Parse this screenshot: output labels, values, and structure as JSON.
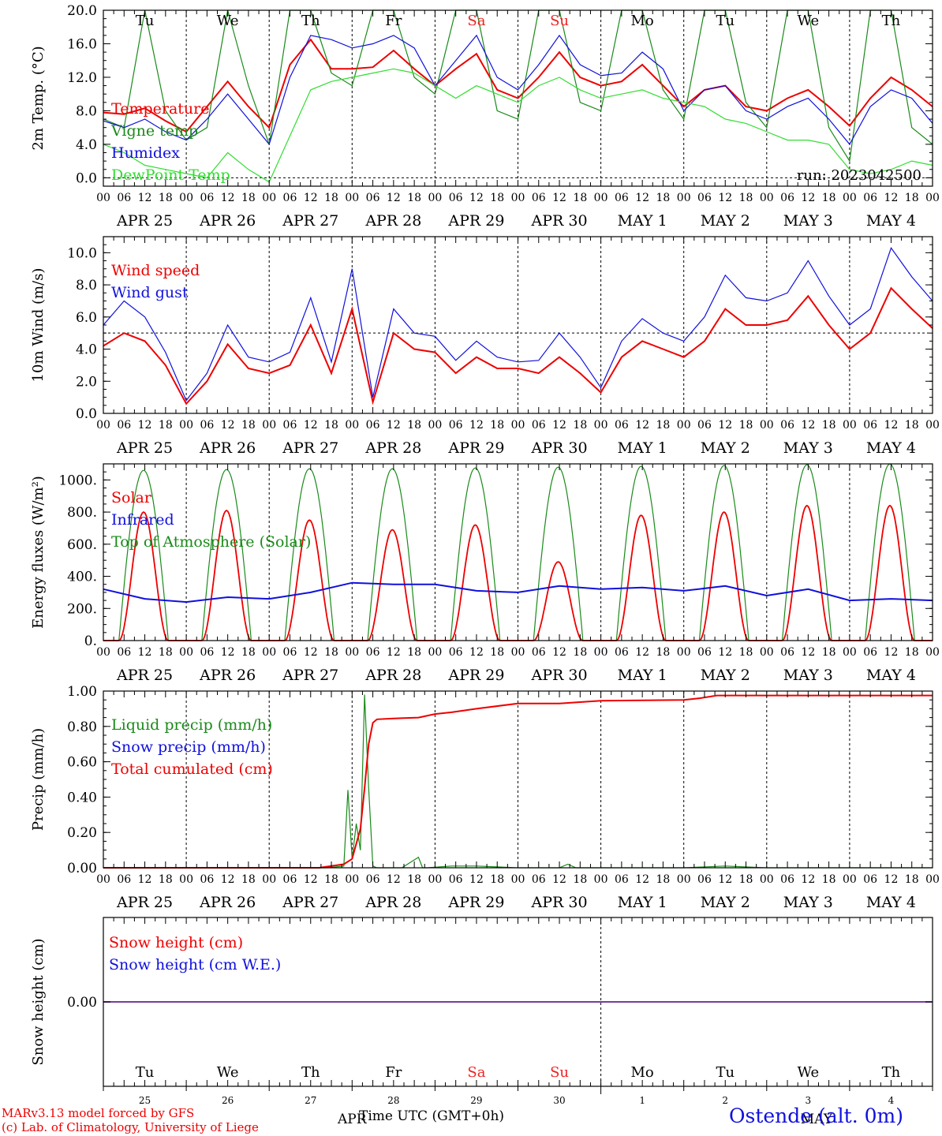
{
  "days": [
    "Tu",
    "We",
    "Th",
    "Fr",
    "Sa",
    "Su",
    "Mo",
    "Tu",
    "We",
    "Th"
  ],
  "weekend_days": [
    "Sa",
    "Su"
  ],
  "dates": [
    "APR 25",
    "APR 26",
    "APR 27",
    "APR 28",
    "APR 29",
    "APR 30",
    "MAY  1",
    "MAY  2",
    "MAY  3",
    "MAY  4"
  ],
  "hour_labels": [
    "00",
    "06",
    "12",
    "18"
  ],
  "last_hour_label": "00",
  "colors": {
    "red": "#ee0000",
    "green": "#1a8a1a",
    "blue": "#1010dd",
    "lightgreen": "#33dd33",
    "weekend": "#ee2222",
    "purple": "#7a3aa0"
  },
  "chart_data": [
    {
      "type": "line",
      "ylabel": "2m Temp. (°C)",
      "ylim": [
        -1.0,
        20.0
      ],
      "yticks": [
        "0.0",
        "4.0",
        "8.0",
        "12.0",
        "16.0",
        "20.0"
      ],
      "ytick_values": [
        0,
        4,
        8,
        12,
        16,
        20
      ],
      "run_label": "run: 2023042500",
      "reference_line": 0,
      "x_days": [
        0,
        0.25,
        0.5,
        0.75,
        1,
        1.25,
        1.5,
        1.75,
        2,
        2.25,
        2.5,
        2.75,
        3,
        3.25,
        3.5,
        3.75,
        4,
        4.25,
        4.5,
        4.75,
        5,
        5.25,
        5.5,
        5.75,
        6,
        6.25,
        6.5,
        6.75,
        7,
        7.25,
        7.5,
        7.75,
        8,
        8.25,
        8.5,
        8.75,
        9,
        9.25,
        9.5,
        9.75,
        10
      ],
      "series": [
        {
          "name": "Temperature",
          "color": "red",
          "values": [
            7.8,
            7.6,
            8.3,
            6.8,
            5.5,
            8.5,
            11.5,
            8.5,
            6.0,
            13.5,
            16.5,
            13.0,
            13.0,
            13.2,
            15.2,
            13.0,
            11.0,
            13.0,
            14.8,
            10.5,
            9.5,
            12.0,
            15.0,
            12.0,
            11.0,
            11.5,
            13.5,
            11.0,
            8.5,
            10.5,
            11.0,
            8.5,
            8.0,
            9.5,
            10.5,
            8.5,
            6.2,
            9.5,
            12.0,
            10.5,
            8.5
          ]
        },
        {
          "name": "Vigne temp",
          "color": "green",
          "values": [
            7.0,
            6.0,
            20.0,
            8.0,
            4.5,
            6.0,
            20.0,
            11.0,
            4.0,
            20.0,
            20.0,
            12.5,
            11.0,
            20.0,
            20.0,
            12.0,
            10.0,
            20.0,
            20.0,
            8.0,
            7.0,
            20.0,
            20.0,
            9.0,
            8.0,
            20.0,
            20.0,
            10.5,
            7.0,
            20.0,
            20.0,
            9.0,
            6.0,
            20.0,
            20.0,
            6.0,
            2.0,
            20.0,
            20.0,
            6.0,
            4.0
          ]
        },
        {
          "name": "Humidex",
          "color": "blue",
          "values": [
            6.8,
            6.0,
            7.0,
            5.5,
            4.5,
            7.0,
            10.0,
            7.0,
            4.0,
            12.0,
            17.0,
            16.5,
            15.5,
            16.0,
            17.0,
            15.5,
            11.0,
            14.0,
            17.0,
            12.0,
            10.5,
            13.5,
            17.0,
            13.5,
            12.2,
            12.5,
            15.0,
            13.0,
            8.0,
            10.5,
            11.0,
            8.0,
            7.0,
            8.5,
            9.5,
            7.0,
            4.0,
            8.5,
            10.5,
            9.5,
            6.5
          ]
        },
        {
          "name": "DewPoint Temp",
          "color": "lightgreen",
          "values": [
            4.0,
            3.0,
            1.5,
            1.0,
            0.5,
            0.0,
            3.0,
            1.0,
            -0.5,
            5.0,
            10.5,
            11.5,
            12.0,
            12.5,
            13.0,
            12.5,
            11.0,
            9.5,
            11.0,
            10.0,
            9.0,
            11.0,
            12.0,
            10.5,
            9.5,
            10.0,
            10.5,
            9.5,
            9.0,
            8.5,
            7.0,
            6.5,
            5.5,
            4.5,
            4.5,
            4.0,
            1.0,
            0.5,
            1.0,
            2.0,
            1.5
          ]
        }
      ]
    },
    {
      "type": "line",
      "ylabel": "10m Wind (m/s)",
      "ylim": [
        0.0,
        11.0
      ],
      "yticks": [
        "0.0",
        "2.0",
        "4.0",
        "6.0",
        "8.0",
        "10.0"
      ],
      "ytick_values": [
        0,
        2,
        4,
        6,
        8,
        10
      ],
      "reference_line": 5,
      "x_days": [
        0,
        0.25,
        0.5,
        0.75,
        1,
        1.25,
        1.5,
        1.75,
        2,
        2.25,
        2.5,
        2.75,
        3,
        3.25,
        3.5,
        3.75,
        4,
        4.25,
        4.5,
        4.75,
        5,
        5.25,
        5.5,
        5.75,
        6,
        6.25,
        6.5,
        6.75,
        7,
        7.25,
        7.5,
        7.75,
        8,
        8.25,
        8.5,
        8.75,
        9,
        9.25,
        9.5,
        9.75,
        10
      ],
      "series": [
        {
          "name": "Wind speed",
          "color": "red",
          "values": [
            4.2,
            5.0,
            4.5,
            3.0,
            0.6,
            2.0,
            4.3,
            2.8,
            2.5,
            3.0,
            5.5,
            2.5,
            6.5,
            0.7,
            5.0,
            4.0,
            3.8,
            2.5,
            3.5,
            2.8,
            2.8,
            2.5,
            3.5,
            2.5,
            1.3,
            3.5,
            4.5,
            4.0,
            3.5,
            4.5,
            6.5,
            5.5,
            5.5,
            5.8,
            7.3,
            5.5,
            4.0,
            5.0,
            7.8,
            6.5,
            5.3
          ]
        },
        {
          "name": "Wind gust",
          "color": "blue",
          "values": [
            5.5,
            7.0,
            6.0,
            3.8,
            0.8,
            2.5,
            5.5,
            3.5,
            3.2,
            3.8,
            7.2,
            3.2,
            9.0,
            1.0,
            6.5,
            5.0,
            4.8,
            3.3,
            4.5,
            3.5,
            3.2,
            3.3,
            5.0,
            3.5,
            1.6,
            4.5,
            5.9,
            5.0,
            4.5,
            6.0,
            8.6,
            7.2,
            7.0,
            7.5,
            9.5,
            7.3,
            5.5,
            6.5,
            10.3,
            8.5,
            7.0
          ]
        }
      ]
    },
    {
      "type": "line",
      "ylabel": "Energy fluxes (W/m²)",
      "ylim": [
        0,
        1100
      ],
      "yticks": [
        "0.",
        "200.",
        "400.",
        "600.",
        "800.",
        "1000."
      ],
      "ytick_values": [
        0,
        200,
        400,
        600,
        800,
        1000
      ],
      "sun_rise_hour": 4.5,
      "sun_set_hour": 18.8,
      "toa_peak": [
        1060,
        1065,
        1070,
        1070,
        1075,
        1080,
        1085,
        1090,
        1095,
        1100
      ],
      "solar_peak": [
        800,
        810,
        750,
        690,
        720,
        490,
        780,
        800,
        840,
        840
      ],
      "infrared": {
        "x_days": [
          0,
          0.5,
          1,
          1.5,
          2,
          2.5,
          3,
          3.5,
          4,
          4.5,
          5,
          5.5,
          6,
          6.5,
          7,
          7.5,
          8,
          8.5,
          9,
          9.5,
          10
        ],
        "values": [
          320,
          260,
          240,
          270,
          260,
          300,
          360,
          350,
          350,
          310,
          300,
          340,
          320,
          330,
          310,
          340,
          280,
          320,
          250,
          260,
          250
        ]
      },
      "series": [
        {
          "name": "Solar",
          "color": "red"
        },
        {
          "name": "Infrared",
          "color": "blue"
        },
        {
          "name": "Top of Atmosphere (Solar)",
          "color": "green"
        }
      ]
    },
    {
      "type": "line",
      "ylabel": "Precip (mm/h)",
      "ylim": [
        0.0,
        1.0
      ],
      "yticks": [
        "0.00",
        "0.20",
        "0.40",
        "0.60",
        "0.80",
        "1.00"
      ],
      "ytick_values": [
        0,
        0.2,
        0.4,
        0.6,
        0.8,
        1.0
      ],
      "series": [
        {
          "name": "Liquid precip (mm/h)",
          "color": "green",
          "x_days": [
            0,
            2.7,
            2.9,
            2.95,
            3.0,
            3.05,
            3.1,
            3.15,
            3.2,
            3.25,
            3.3,
            3.4,
            3.6,
            3.8,
            3.85,
            3.9,
            4.2,
            4.5,
            5.0,
            5.5,
            5.6,
            5.7,
            6.0,
            7.0,
            7.5,
            8.0,
            10.0
          ],
          "values": [
            0,
            0,
            0.01,
            0.44,
            0.05,
            0.25,
            0.1,
            0.98,
            0.45,
            0.01,
            0.0,
            0.0,
            0.0,
            0.06,
            0.0,
            0.0,
            0.01,
            0.01,
            0.0,
            0.0,
            0.02,
            0.0,
            0.0,
            0.0,
            0.01,
            0.0,
            0.0
          ]
        },
        {
          "name": "Snow precip (mm/h)",
          "color": "blue",
          "x_days": [],
          "values": []
        },
        {
          "name": "Total cumulated (cm)",
          "color": "red",
          "x_days": [
            0,
            2.6,
            2.9,
            3.0,
            3.1,
            3.15,
            3.2,
            3.25,
            3.3,
            3.5,
            3.8,
            4.0,
            4.2,
            4.5,
            5.0,
            5.5,
            6.0,
            7.0,
            7.2,
            7.4,
            8.0,
            10.0
          ],
          "values": [
            0,
            0,
            0.02,
            0.05,
            0.22,
            0.45,
            0.7,
            0.82,
            0.84,
            0.845,
            0.85,
            0.87,
            0.88,
            0.9,
            0.93,
            0.93,
            0.945,
            0.95,
            0.96,
            0.975,
            0.975,
            0.975
          ]
        }
      ]
    },
    {
      "type": "line",
      "ylabel": "Snow height (cm)",
      "ylim": [
        -1.0,
        1.0
      ],
      "yticks": [
        "0.00"
      ],
      "ytick_values": [
        0
      ],
      "series": [
        {
          "name": "Snow height (cm)",
          "color": "red"
        },
        {
          "name": "Snow height (cm W.E.)",
          "color": "blue"
        }
      ],
      "flat_value": 0.0,
      "day_numbers": [
        "25",
        "26",
        "27",
        "28",
        "29",
        "30",
        "1",
        "2",
        "3",
        "4"
      ],
      "month_labels": [
        "APR",
        "MAY"
      ]
    }
  ],
  "xlabel": "Time UTC (GMT+0h)",
  "footer": {
    "model": "MARv3.13 model forced by GFS",
    "credit": "(c) Lab. of Climatology, University of Liege",
    "station": "Ostende (alt. 0m)"
  }
}
